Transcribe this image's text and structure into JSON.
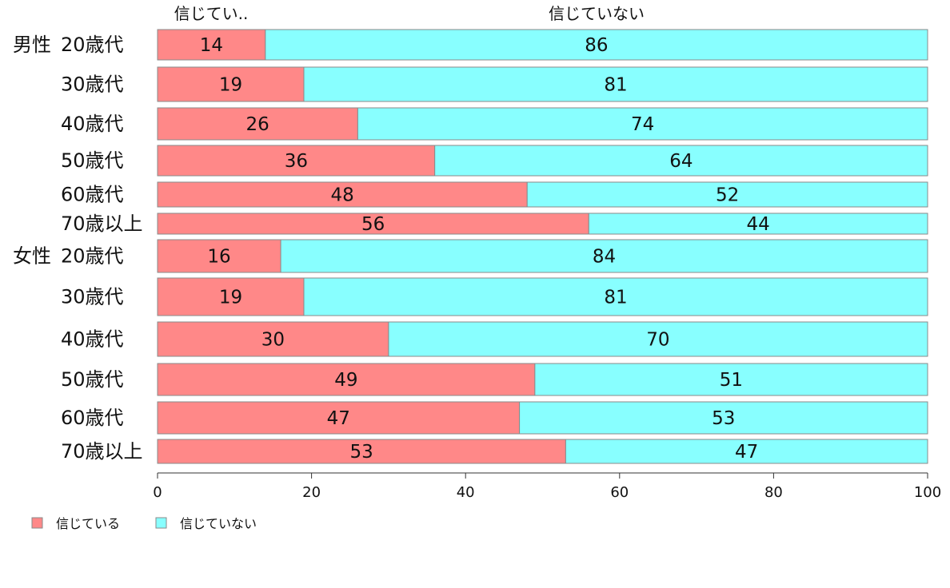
{
  "chart_data": {
    "type": "bar",
    "orientation": "horizontal",
    "stacked": true,
    "column_headers": [
      "信じてい..",
      "信じていない"
    ],
    "group_labels": [
      "男性",
      "女性"
    ],
    "categories": [
      "20歳代",
      "30歳代",
      "40歳代",
      "50歳代",
      "60歳代",
      "70歳以上",
      "20歳代",
      "30歳代",
      "40歳代",
      "50歳代",
      "60歳代",
      "70歳以上"
    ],
    "series": [
      {
        "name": "信じている",
        "color": "#ff8888",
        "values": [
          14,
          19,
          26,
          36,
          48,
          56,
          16,
          19,
          30,
          49,
          47,
          53
        ]
      },
      {
        "name": "信じていない",
        "color": "#88ffff",
        "values": [
          86,
          81,
          74,
          64,
          52,
          44,
          84,
          81,
          70,
          51,
          53,
          47
        ]
      }
    ],
    "xlim": [
      0,
      100
    ],
    "xticks": [
      0,
      20,
      40,
      60,
      80,
      100
    ],
    "grid": false,
    "legend_position": "bottom-left"
  }
}
